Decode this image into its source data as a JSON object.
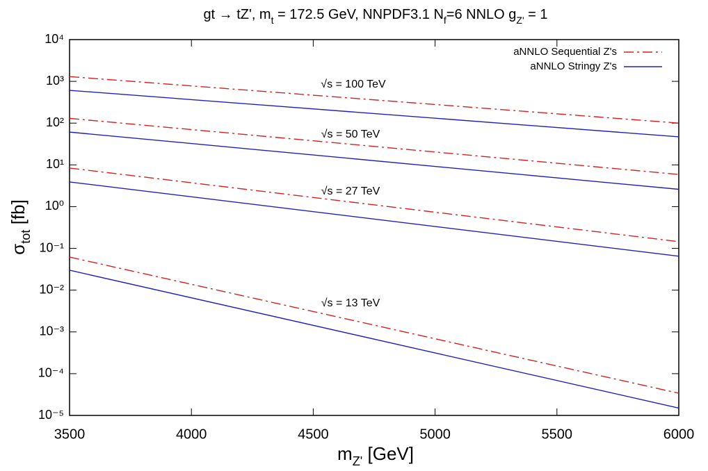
{
  "chart_data": {
    "type": "line",
    "title": [
      {
        "text": "gt → tZ', m"
      },
      {
        "sub": "t"
      },
      {
        "text": " = 172.5 GeV, NNPDF3.1 N"
      },
      {
        "sub": "f"
      },
      {
        "text": "=6 NNLO  g"
      },
      {
        "sub": "Z'"
      },
      {
        "text": "  = 1"
      }
    ],
    "x_label": [
      {
        "text": "m"
      },
      {
        "sub": "Z'"
      },
      {
        "text": "  [GeV]"
      }
    ],
    "y_label": [
      {
        "text": "σ"
      },
      {
        "sub": "tot"
      },
      {
        "text": "  [fb]"
      }
    ],
    "log_y": true,
    "x": [
      3500,
      6000
    ],
    "xlim": [
      3500,
      6000
    ],
    "xticks": [
      3500,
      4000,
      4500,
      5000,
      5500,
      6000
    ],
    "ylim": [
      1e-05,
      10000
    ],
    "yticks": [
      {
        "value": 1e-05,
        "label": "10⁻⁵"
      },
      {
        "value": 0.0001,
        "label": "10⁻⁴"
      },
      {
        "value": 0.001,
        "label": "10⁻³"
      },
      {
        "value": 0.01,
        "label": "10⁻²"
      },
      {
        "value": 0.1,
        "label": "10⁻¹"
      },
      {
        "value": 1,
        "label": "10⁰"
      },
      {
        "value": 10,
        "label": "10¹"
      },
      {
        "value": 100,
        "label": "10²"
      },
      {
        "value": 1000,
        "label": "10³"
      },
      {
        "value": 10000,
        "label": "10⁴"
      }
    ],
    "legend": "top-right",
    "series": [
      {
        "name": "aNNLO Sequential Z's",
        "color": "#d62020",
        "dash": "dashdot",
        "values": [
          1300,
          100
        ]
      },
      {
        "name": "aNNLO Stringy Z's",
        "color": "#2020c0",
        "dash": "solid",
        "values": [
          610,
          47
        ]
      },
      {
        "color": "#d62020",
        "dash": "dashdot",
        "values": [
          130,
          5.9
        ]
      },
      {
        "color": "#2020c0",
        "dash": "solid",
        "values": [
          61,
          2.6
        ]
      },
      {
        "color": "#d62020",
        "dash": "dashdot",
        "values": [
          8.4,
          0.145
        ]
      },
      {
        "color": "#2020c0",
        "dash": "solid",
        "values": [
          3.9,
          0.065
        ]
      },
      {
        "color": "#d62020",
        "dash": "dashdot",
        "values": [
          0.062,
          3.4e-05
        ]
      },
      {
        "color": "#2020c0",
        "dash": "solid",
        "values": [
          0.03,
          1.5e-05
        ]
      }
    ],
    "annotations": [
      "√s = 100 TeV",
      "√s = 50 TeV",
      "√s = 27 TeV",
      "√s = 13 TeV"
    ]
  }
}
